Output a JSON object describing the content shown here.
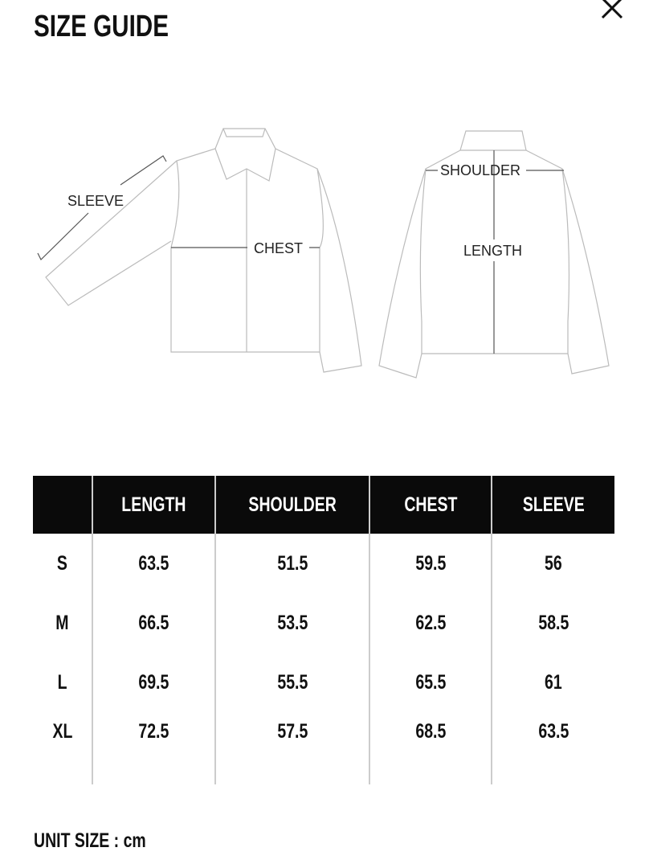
{
  "title": "SIZE GUIDE",
  "close_icon": "close-x-icon",
  "diagram": {
    "labels": {
      "sleeve": "SLEEVE",
      "chest": "CHEST",
      "shoulder": "SHOULDER",
      "length": "LENGTH"
    }
  },
  "table": {
    "headers": [
      "",
      "LENGTH",
      "SHOULDER",
      "CHEST",
      "SLEEVE"
    ],
    "rows": [
      [
        "S",
        "63.5",
        "51.5",
        "59.5",
        "56"
      ],
      [
        "M",
        "66.5",
        "53.5",
        "62.5",
        "58.5"
      ],
      [
        "L",
        "69.5",
        "55.5",
        "65.5",
        "61"
      ],
      [
        "XL",
        "72.5",
        "57.5",
        "68.5",
        "63.5"
      ]
    ]
  },
  "unit": "UNIT SIZE : cm",
  "colors": {
    "header_bg": "#0a0a0a",
    "header_text": "#ffffff",
    "divider": "#cccccc"
  }
}
